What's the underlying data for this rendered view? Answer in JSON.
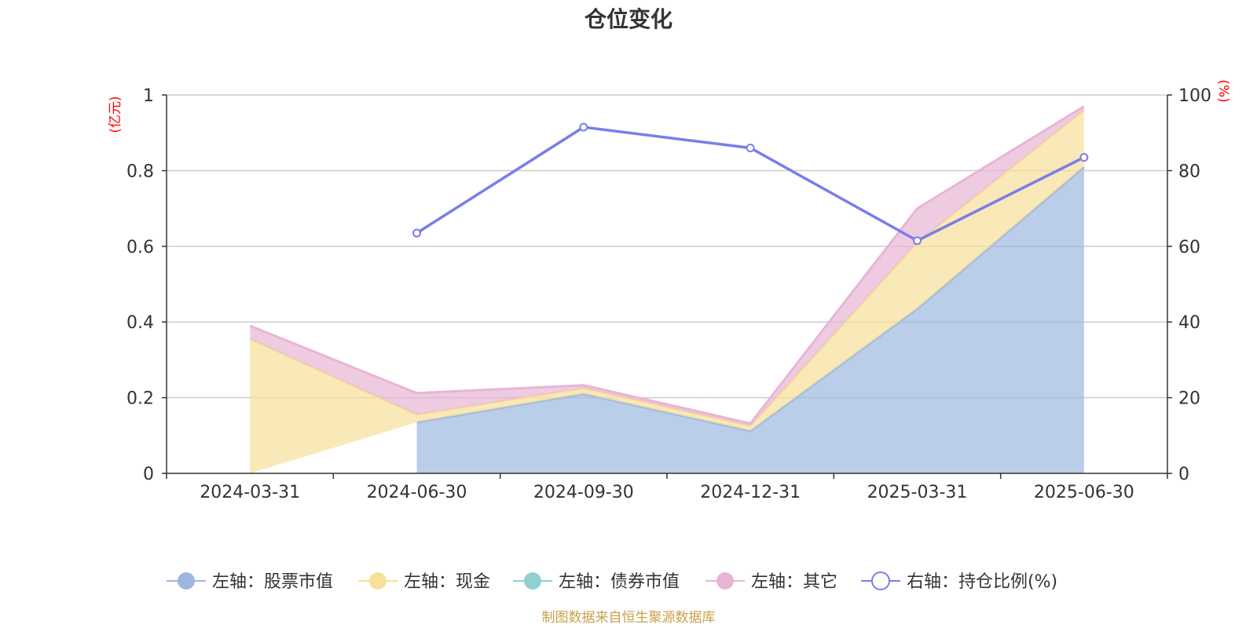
{
  "chart_data": {
    "type": "area",
    "title": "仓位变化",
    "categories": [
      "2024-03-31",
      "2024-06-30",
      "2024-09-30",
      "2024-12-31",
      "2025-03-31",
      "2025-06-30"
    ],
    "left_axis": {
      "unit": "(亿元)",
      "ylim": [
        0,
        1
      ],
      "ticks": [
        "0",
        "0.2",
        "0.4",
        "0.6",
        "0.8",
        "1"
      ]
    },
    "right_axis": {
      "unit": "(%)",
      "ylim": [
        0,
        100
      ],
      "ticks": [
        "0",
        "20",
        "40",
        "60",
        "80",
        "100"
      ]
    },
    "stacked": true,
    "series": [
      {
        "name": "左轴：股票市值",
        "axis": "left",
        "values": [
          null,
          0.135,
          0.21,
          0.112,
          0.435,
          0.81
        ],
        "color": "#9db8df"
      },
      {
        "name": "左轴：现金",
        "axis": "left",
        "values": [
          0.355,
          0.02,
          0.015,
          0.013,
          0.175,
          0.15
        ],
        "color": "#f7e09a"
      },
      {
        "name": "左轴：债券市值",
        "axis": "left",
        "values": [
          0,
          0,
          0,
          0,
          0,
          0
        ],
        "color": "#8fd0d0"
      },
      {
        "name": "左轴：其它",
        "axis": "left",
        "values": [
          0.035,
          0.057,
          0.008,
          0.007,
          0.09,
          0.01
        ],
        "color": "#e8b5d6"
      },
      {
        "name": "右轴：持仓比例(%)",
        "axis": "right",
        "values": [
          null,
          63.5,
          91.5,
          86,
          61.5,
          83.5
        ],
        "color": "#7a7ee8"
      }
    ],
    "grid": true,
    "legend_position": "bottom",
    "footer": "制图数据来自恒生聚源数据库"
  }
}
